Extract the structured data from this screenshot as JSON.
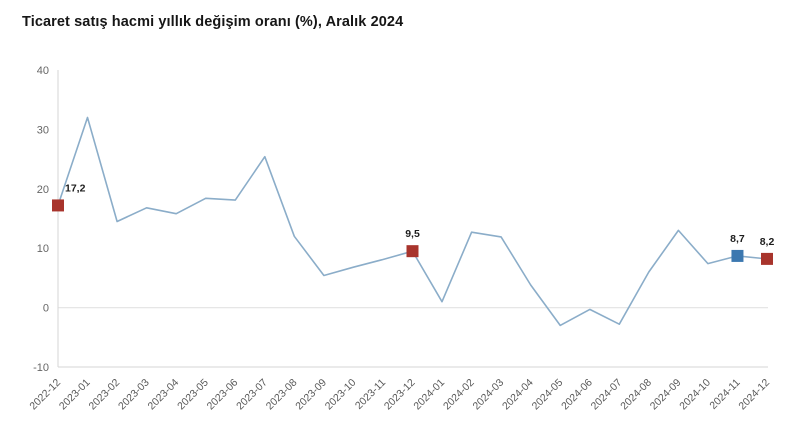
{
  "title": "Ticaret satış hacmi yıllık değişim oranı (%), Aralık 2024",
  "chart_data": {
    "type": "line",
    "title": "Ticaret satış hacmi yıllık değişim oranı (%), Aralık 2024",
    "xlabel": "",
    "ylabel": "",
    "legend": "none",
    "grid": "zero-line-only",
    "ylim": [
      -10,
      40
    ],
    "yticks": [
      40,
      30,
      20,
      10,
      0,
      -10
    ],
    "categories": [
      "2022-12",
      "2023-01",
      "2023-02",
      "2023-03",
      "2023-04",
      "2023-05",
      "2023-06",
      "2023-07",
      "2023-08",
      "2023-09",
      "2023-10",
      "2023-11",
      "2023-12",
      "2024-01",
      "2024-02",
      "2024-03",
      "2024-04",
      "2024-05",
      "2024-06",
      "2024-07",
      "2024-08",
      "2024-09",
      "2024-10",
      "2024-11",
      "2024-12"
    ],
    "values": [
      17.2,
      32,
      14.5,
      16.8,
      15.8,
      18.4,
      18.1,
      25.4,
      12,
      5.4,
      6.8,
      8.1,
      9.5,
      1,
      12.7,
      11.9,
      3.8,
      -3,
      -0.3,
      -2.8,
      6,
      13,
      7.4,
      8.7,
      8.2
    ],
    "line_color": "#8badc9",
    "axis_color": "#d6d6d6",
    "zero_line_color": "#e6e6e6",
    "tick_label_color": "#666666",
    "annotations": [
      {
        "index": 0,
        "label": "17,2",
        "value": 17.2,
        "marker_color": "#a8342c",
        "align": "top-right"
      },
      {
        "index": 12,
        "label": "9,5",
        "value": 9.5,
        "marker_color": "#a8342c",
        "align": "top"
      },
      {
        "index": 23,
        "label": "8,7",
        "value": 8.7,
        "marker_color": "#3c78b0",
        "align": "top"
      },
      {
        "index": 24,
        "label": "8,2",
        "value": 8.2,
        "marker_color": "#a8342c",
        "align": "top"
      }
    ]
  }
}
